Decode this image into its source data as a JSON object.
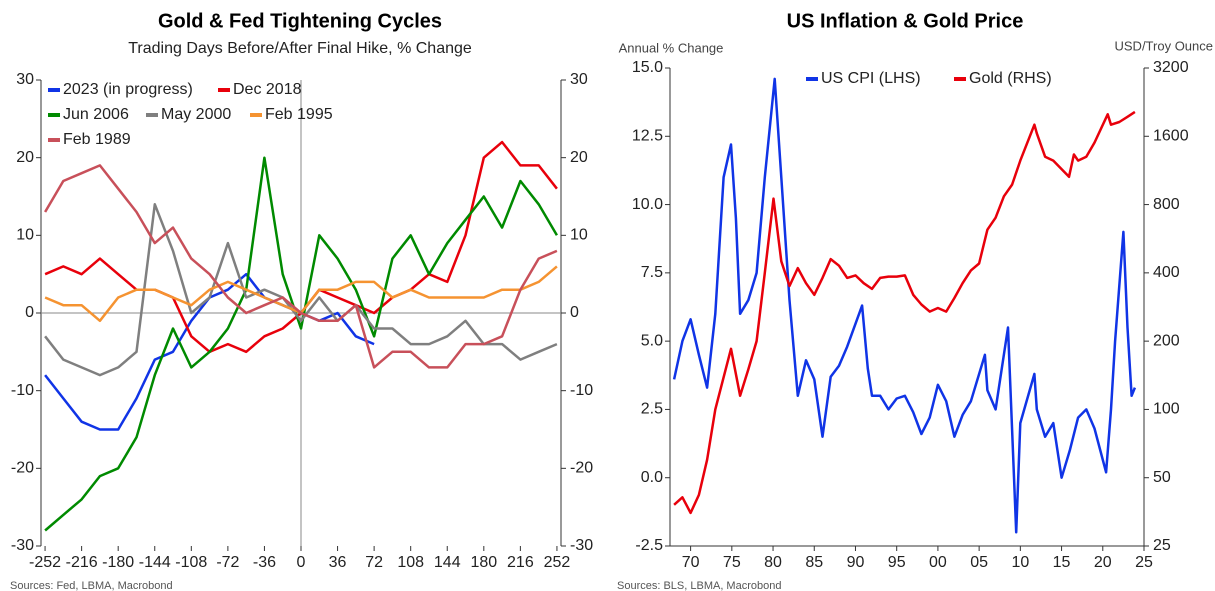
{
  "chart_data": [
    {
      "type": "line",
      "title": "Gold & Fed Tightening Cycles",
      "subtitle": "Trading Days Before/After Final Hike, % Change",
      "source": "Sources: Fed, LBMA, Macrobond",
      "x": [
        -252,
        -234,
        -216,
        -198,
        -180,
        -162,
        -144,
        -126,
        -108,
        -90,
        -72,
        -54,
        -36,
        -18,
        0,
        18,
        36,
        54,
        72,
        90,
        108,
        126,
        144,
        162,
        180,
        198,
        216,
        234,
        252
      ],
      "xlim": [
        -256,
        256
      ],
      "xticks": [
        -252,
        -216,
        -180,
        -144,
        -108,
        -72,
        -36,
        0,
        36,
        72,
        108,
        144,
        180,
        216,
        252
      ],
      "ylim": [
        -30,
        30
      ],
      "yticks": [
        -30,
        -20,
        -10,
        0,
        10,
        20,
        30
      ],
      "y2lim": [
        -30,
        30
      ],
      "y2ticks": [
        -30,
        -20,
        -10,
        0,
        10,
        20,
        30
      ],
      "legend": "upper left",
      "series": [
        {
          "name": "2023 (in progress)",
          "color": "#1034e6",
          "values": [
            -8,
            -11,
            -14,
            -15,
            -15,
            -11,
            -6,
            -5,
            -1,
            2,
            3,
            5,
            2,
            1,
            0,
            -1,
            0,
            -3,
            -4,
            null,
            null,
            null,
            null,
            null,
            null,
            null,
            null,
            null,
            null
          ]
        },
        {
          "name": "Dec 2018",
          "color": "#e8000b",
          "values": [
            5,
            6,
            5,
            7,
            5,
            3,
            3,
            2,
            -3,
            -5,
            -4,
            -5,
            -3,
            -2,
            0,
            3,
            2,
            1,
            0,
            2,
            3,
            5,
            4,
            10,
            20,
            22,
            19,
            19,
            16
          ]
        },
        {
          "name": "Jun 2006",
          "color": "#008a00",
          "values": [
            -28,
            -26,
            -24,
            -21,
            -20,
            -16,
            -8,
            -2,
            -7,
            -5,
            -2,
            3,
            20,
            5,
            -2,
            10,
            7,
            3,
            -3,
            7,
            10,
            5,
            9,
            12,
            15,
            11,
            17,
            14,
            10
          ]
        },
        {
          "name": "May 2000",
          "color": "#7f7f7f",
          "values": [
            -3,
            -6,
            -7,
            -8,
            -7,
            -5,
            14,
            8,
            0,
            2,
            9,
            2,
            3,
            2,
            -1,
            2,
            -1,
            1,
            -2,
            -2,
            -4,
            -4,
            -3,
            -1,
            -4,
            -4,
            -6,
            -5,
            -4
          ]
        },
        {
          "name": "Feb 1995",
          "color": "#f59331",
          "values": [
            2,
            1,
            1,
            -1,
            2,
            3,
            3,
            2,
            1,
            3,
            4,
            3,
            2,
            1,
            0,
            3,
            3,
            4,
            4,
            2,
            3,
            2,
            2,
            2,
            2,
            3,
            3,
            4,
            6
          ]
        },
        {
          "name": "Feb 1989",
          "color": "#c8505a",
          "values": [
            13,
            17,
            18,
            19,
            16,
            13,
            9,
            11,
            7,
            5,
            2,
            0,
            1,
            2,
            0,
            -1,
            -1,
            1,
            -7,
            -5,
            -5,
            -7,
            -7,
            -4,
            -4,
            -3,
            3,
            7,
            8
          ]
        }
      ]
    },
    {
      "type": "line",
      "title": "US Inflation & Gold Price",
      "ylabel": "Annual % Change",
      "y2label": "USD/Troy Ounce",
      "source": "Sources: BLS, LBMA, Macrobond",
      "xlim": [
        1967.5,
        2025
      ],
      "xticks": [
        {
          "value": 1970,
          "label": "70"
        },
        {
          "value": 1975,
          "label": "75"
        },
        {
          "value": 1980,
          "label": "80"
        },
        {
          "value": 1985,
          "label": "85"
        },
        {
          "value": 1990,
          "label": "90"
        },
        {
          "value": 1995,
          "label": "95"
        },
        {
          "value": 2000,
          "label": "00"
        },
        {
          "value": 2005,
          "label": "05"
        },
        {
          "value": 2010,
          "label": "10"
        },
        {
          "value": 2015,
          "label": "15"
        },
        {
          "value": 2020,
          "label": "20"
        },
        {
          "value": 2025,
          "label": "25"
        }
      ],
      "ylim": [
        -2.5,
        15
      ],
      "yticks": [
        -2.5,
        {
          "value": 0,
          "label": "0.0"
        },
        2.5,
        {
          "value": 5,
          "label": "5.0"
        },
        7.5,
        {
          "value": 10,
          "label": "10.0"
        },
        12.5,
        {
          "value": 15,
          "label": "15.0"
        }
      ],
      "y2lim": [
        25,
        3200
      ],
      "y2scale": "log",
      "y2ticks": [
        25,
        50,
        100,
        200,
        400,
        800,
        1600,
        3200
      ],
      "legend": "upper center",
      "series": [
        {
          "name": "US CPI (LHS)",
          "color": "#1034e6",
          "x": [
            1968,
            1969,
            1970,
            1971,
            1972,
            1973,
            1974,
            1974.9,
            1975.5,
            1976,
            1977,
            1978,
            1979,
            1980.2,
            1981,
            1982,
            1983,
            1984,
            1985,
            1986,
            1987,
            1988,
            1989,
            1990.8,
            1991.5,
            1992,
            1993,
            1994,
            1995,
            1996,
            1997,
            1998,
            1999,
            2000,
            2001,
            2002,
            2003,
            2004,
            2005.7,
            2006,
            2007,
            2008.5,
            2009.5,
            2010,
            2011.7,
            2012,
            2013,
            2014,
            2015,
            2016,
            2017,
            2018,
            2019,
            2020.4,
            2021,
            2021.5,
            2022.5,
            2023,
            2023.5,
            2023.9
          ],
          "values": [
            3.6,
            5.0,
            5.8,
            4.5,
            3.3,
            6.0,
            11.0,
            12.2,
            9.5,
            6.0,
            6.5,
            7.5,
            11.0,
            14.6,
            11.0,
            6.5,
            3.0,
            4.3,
            3.6,
            1.5,
            3.7,
            4.1,
            4.8,
            6.3,
            4.0,
            3.0,
            3.0,
            2.5,
            2.9,
            3.0,
            2.4,
            1.6,
            2.2,
            3.4,
            2.8,
            1.5,
            2.3,
            2.8,
            4.5,
            3.2,
            2.5,
            5.5,
            -2.0,
            2.0,
            3.8,
            2.5,
            1.5,
            2.0,
            0.0,
            1.0,
            2.2,
            2.5,
            1.8,
            0.2,
            2.5,
            5.0,
            9.0,
            5.5,
            3.0,
            3.3
          ]
        },
        {
          "name": "Gold (RHS)",
          "color": "#e8000b",
          "axis": "y2",
          "x": [
            1968,
            1969,
            1970,
            1971,
            1972,
            1973,
            1974.9,
            1976,
            1977,
            1978,
            1979,
            1980.05,
            1981,
            1982,
            1983,
            1984,
            1985,
            1986,
            1987,
            1988,
            1989,
            1990,
            1991,
            1992,
            1993,
            1994,
            1995,
            1996,
            1997,
            1998,
            1999,
            2000,
            2001,
            2002,
            2003,
            2004,
            2005,
            2006,
            2007,
            2008,
            2009,
            2010,
            2011.7,
            2012,
            2013,
            2014,
            2015.9,
            2016.5,
            2017,
            2018,
            2019,
            2020.6,
            2021,
            2022,
            2023,
            2023.9
          ],
          "values": [
            38,
            41,
            35,
            42,
            60,
            100,
            185,
            115,
            150,
            200,
            400,
            850,
            450,
            350,
            420,
            360,
            320,
            380,
            460,
            430,
            380,
            390,
            360,
            340,
            380,
            385,
            385,
            390,
            320,
            290,
            270,
            280,
            270,
            310,
            360,
            410,
            440,
            620,
            700,
            870,
            980,
            1250,
            1800,
            1650,
            1300,
            1250,
            1060,
            1330,
            1250,
            1300,
            1500,
            2000,
            1800,
            1850,
            1950,
            2050
          ]
        }
      ]
    }
  ]
}
